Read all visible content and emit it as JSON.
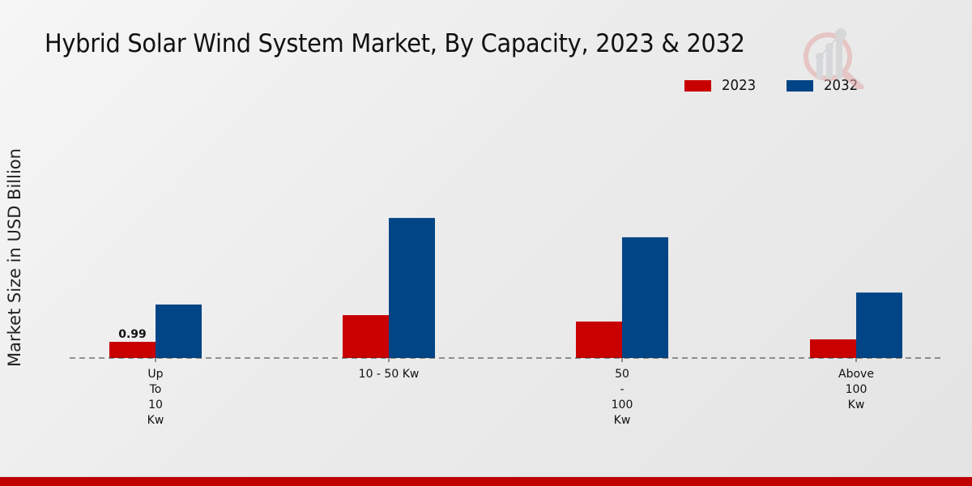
{
  "chart_data": {
    "type": "bar",
    "title": "Hybrid Solar Wind System Market, By Capacity, 2023 & 2032",
    "xlabel": "",
    "ylabel": "Market Size in USD Billion",
    "categories": [
      "Up To 10 Kw",
      "10 - 50 Kw",
      "50 - 100 Kw",
      "Above 100 Kw"
    ],
    "category_label_lines": [
      [
        "Up",
        "To",
        "10",
        "Kw"
      ],
      [
        "10 - 50 Kw"
      ],
      [
        "50",
        "-",
        "100",
        "Kw"
      ],
      [
        "Above",
        "100",
        "Kw"
      ]
    ],
    "series": [
      {
        "name": "2023",
        "color": "#c80000",
        "values": [
          0.99,
          2.62,
          2.23,
          1.14
        ]
      },
      {
        "name": "2032",
        "color": "#014586",
        "values": [
          3.27,
          8.56,
          7.38,
          4.0
        ]
      }
    ],
    "data_labels": [
      {
        "series": 0,
        "index": 0,
        "text": "0.99"
      }
    ],
    "ylim": [
      0,
      10
    ],
    "grid": false,
    "legend_position": "top-right",
    "baseline_style": "dashed"
  },
  "legend": {
    "items": [
      {
        "label": "2023",
        "color": "#c80000"
      },
      {
        "label": "2032",
        "color": "#014586"
      }
    ]
  },
  "footer": {
    "color": "#c00000"
  },
  "watermark": {
    "icon": "analytics-magnifier-logo"
  }
}
